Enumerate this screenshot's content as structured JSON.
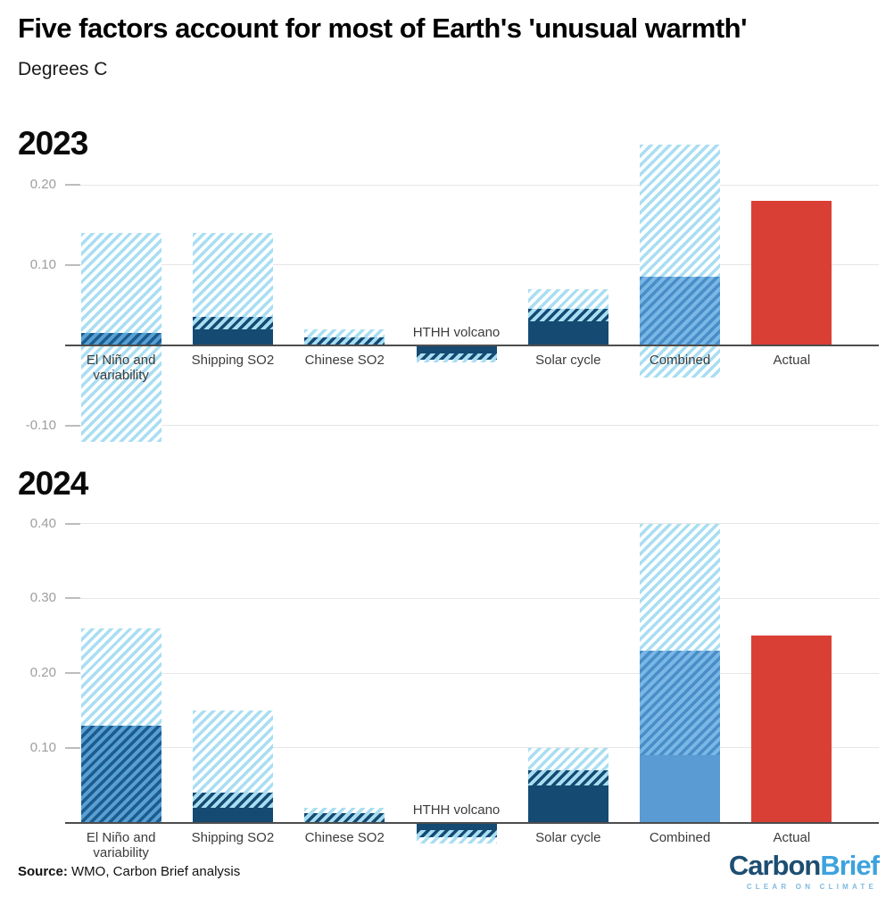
{
  "header": {
    "title": "Five factors account for most of Earth's 'unusual warmth'",
    "subtitle": "Degrees C"
  },
  "styles": {
    "light-hatch": {
      "stripe": "#a9def2",
      "bg": "#ffffff"
    },
    "dark-hatch-light": {
      "stripe": "#154a73",
      "bg": "#a9def2"
    },
    "dark-hatch-medium": {
      "stripe": "#1d5c8f",
      "bg": "#58a0d2"
    },
    "medium-hatch": {
      "stripe": "#4a8ec8",
      "bg": "#7ab7e6"
    },
    "navy": {
      "bg": "#154a73"
    },
    "steel": {
      "bg": "#5b9bd3"
    },
    "red": {
      "bg": "#d93f35"
    }
  },
  "chart_data": [
    {
      "type": "bar",
      "title": "2023",
      "ylabel": "Degrees C",
      "ylim": [
        -0.126,
        0.258
      ],
      "yticks": [
        0.2,
        0.1,
        -0.1
      ],
      "grid": true,
      "legend": "none",
      "bars": [
        {
          "category": "El Niño and variability",
          "segments": [
            {
              "from": -0.12,
              "to": 0.14,
              "style": "light-hatch"
            },
            {
              "from": 0,
              "to": 0.015,
              "style": "dark-hatch-medium"
            }
          ]
        },
        {
          "category": "Shipping SO2",
          "segments": [
            {
              "from": 0,
              "to": 0.14,
              "style": "light-hatch"
            },
            {
              "from": 0.02,
              "to": 0.035,
              "style": "dark-hatch-light"
            },
            {
              "from": 0,
              "to": 0.02,
              "style": "navy"
            }
          ]
        },
        {
          "category": "Chinese SO2",
          "segments": [
            {
              "from": 0,
              "to": 0.02,
              "style": "light-hatch"
            },
            {
              "from": 0,
              "to": 0.01,
              "style": "dark-hatch-light"
            }
          ]
        },
        {
          "category": "HTHH volcano",
          "label_above": true,
          "segments": [
            {
              "from": -0.01,
              "to": 0,
              "style": "navy"
            },
            {
              "from": -0.018,
              "to": -0.01,
              "style": "dark-hatch-light"
            },
            {
              "from": -0.021,
              "to": -0.018,
              "style": "light-hatch"
            }
          ]
        },
        {
          "category": "Solar cycle",
          "segments": [
            {
              "from": 0,
              "to": 0.07,
              "style": "light-hatch"
            },
            {
              "from": 0.03,
              "to": 0.045,
              "style": "dark-hatch-light"
            },
            {
              "from": 0,
              "to": 0.03,
              "style": "navy"
            }
          ]
        },
        {
          "category": "Combined",
          "segments": [
            {
              "from": -0.04,
              "to": 0.25,
              "style": "light-hatch"
            },
            {
              "from": 0,
              "to": 0.085,
              "style": "medium-hatch"
            }
          ]
        },
        {
          "category": "Actual",
          "segments": [
            {
              "from": 0,
              "to": 0.18,
              "style": "red"
            }
          ]
        }
      ]
    },
    {
      "type": "bar",
      "title": "2024",
      "ylabel": "Degrees C",
      "ylim": [
        -0.034,
        0.414
      ],
      "yticks": [
        0.4,
        0.3,
        0.2,
        0.1
      ],
      "grid": true,
      "legend": "none",
      "bars": [
        {
          "category": "El Niño and variability",
          "segments": [
            {
              "from": 0,
              "to": 0.26,
              "style": "light-hatch"
            },
            {
              "from": 0,
              "to": 0.13,
              "style": "dark-hatch-medium"
            }
          ]
        },
        {
          "category": "Shipping SO2",
          "segments": [
            {
              "from": 0,
              "to": 0.15,
              "style": "light-hatch"
            },
            {
              "from": 0.02,
              "to": 0.04,
              "style": "dark-hatch-light"
            },
            {
              "from": 0,
              "to": 0.02,
              "style": "navy"
            }
          ]
        },
        {
          "category": "Chinese SO2",
          "segments": [
            {
              "from": 0,
              "to": 0.02,
              "style": "light-hatch"
            },
            {
              "from": 0,
              "to": 0.012,
              "style": "dark-hatch-light"
            }
          ]
        },
        {
          "category": "HTHH volcano",
          "label_above": true,
          "segments": [
            {
              "from": -0.01,
              "to": 0,
              "style": "navy"
            },
            {
              "from": -0.02,
              "to": -0.01,
              "style": "dark-hatch-light"
            },
            {
              "from": -0.028,
              "to": -0.02,
              "style": "light-hatch"
            }
          ]
        },
        {
          "category": "Solar cycle",
          "segments": [
            {
              "from": 0,
              "to": 0.1,
              "style": "light-hatch"
            },
            {
              "from": 0.05,
              "to": 0.07,
              "style": "dark-hatch-light"
            },
            {
              "from": 0,
              "to": 0.05,
              "style": "navy"
            }
          ]
        },
        {
          "category": "Combined",
          "segments": [
            {
              "from": 0.23,
              "to": 0.4,
              "style": "light-hatch"
            },
            {
              "from": 0.09,
              "to": 0.23,
              "style": "medium-hatch"
            },
            {
              "from": 0,
              "to": 0.09,
              "style": "steel"
            }
          ]
        },
        {
          "category": "Actual",
          "segments": [
            {
              "from": 0,
              "to": 0.25,
              "style": "red"
            }
          ]
        }
      ]
    }
  ],
  "footer": {
    "source_label": "Source:",
    "source_text": " WMO, Carbon Brief analysis",
    "logo": {
      "part1": "Carbon",
      "part2": "Brief",
      "tagline": "CLEAR ON CLIMATE",
      "part1_color": "#1d4e72",
      "part2_color": "#3da2dd",
      "tagline_color": "#7fb9e0"
    }
  }
}
